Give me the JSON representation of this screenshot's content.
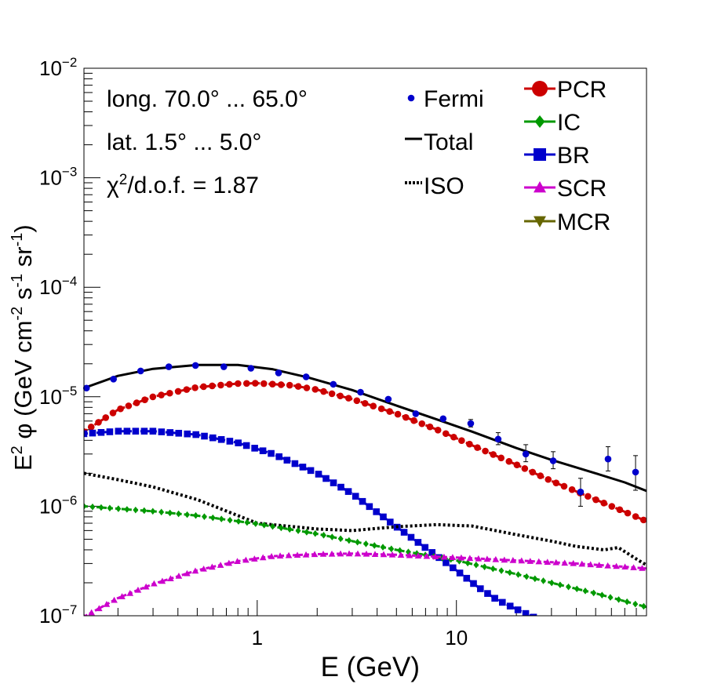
{
  "chart_data": {
    "type": "line",
    "xscale": "log",
    "yscale": "log",
    "xlim": [
      0.135,
      90
    ],
    "ylim": [
      1e-07,
      0.01
    ],
    "xlabel": "E (GeV)",
    "ylabel": {
      "prefix": "E",
      "prefix_sup": "2",
      "main": " φ (GeV cm",
      "sup1": "-2",
      "mid": " s",
      "sup2": "-1",
      "mid2": " sr",
      "sup3": "-1",
      "end": ")"
    },
    "x_tick_labels": [
      {
        "value": 1,
        "label": "1"
      },
      {
        "value": 10,
        "label": "10"
      }
    ],
    "y_tick_labels": [
      {
        "value": 1e-07,
        "base": "10",
        "exp": "−7"
      },
      {
        "value": 1e-06,
        "base": "10",
        "exp": "−6"
      },
      {
        "value": 1e-05,
        "base": "10",
        "exp": "−5"
      },
      {
        "value": 0.0001,
        "base": "10",
        "exp": "−4"
      },
      {
        "value": 0.001,
        "base": "10",
        "exp": "−3"
      },
      {
        "value": 0.01,
        "base": "10",
        "exp": "−2"
      }
    ],
    "annotations": {
      "longitude": "long. 70.0° ... 65.0°",
      "latitude": "lat. 1.5° ... 5.0°",
      "chi2_prefix": "χ",
      "chi2_sup": "2",
      "chi2_rest": "/d.o.f. = 1.87"
    },
    "legend_left": [
      {
        "label": "Fermi",
        "marker": "dot",
        "color": "#0000cc"
      },
      {
        "label": "Total",
        "marker": "solid-line",
        "color": "#000000"
      },
      {
        "label": "ISO",
        "marker": "dotted-line",
        "color": "#000000"
      }
    ],
    "legend_right": [
      {
        "label": "PCR",
        "marker": "circle",
        "color": "#cc0000"
      },
      {
        "label": "IC",
        "marker": "diamond",
        "color": "#009900"
      },
      {
        "label": "BR",
        "marker": "square",
        "color": "#0000cc"
      },
      {
        "label": "SCR",
        "marker": "triangle-up",
        "color": "#cc00cc"
      },
      {
        "label": "MCR",
        "marker": "triangle-down",
        "color": "#666600"
      }
    ],
    "series": [
      {
        "name": "Total",
        "style": "solid",
        "color": "#000000",
        "x": [
          0.135,
          0.2,
          0.3,
          0.5,
          0.8,
          1.2,
          1.8,
          3,
          5,
          8,
          12,
          20,
          30,
          50,
          70,
          90
        ],
        "y": [
          1.2e-05,
          1.55e-05,
          1.8e-05,
          1.95e-05,
          1.95e-05,
          1.78e-05,
          1.5e-05,
          1.15e-05,
          8.3e-06,
          6.2e-06,
          4.8e-06,
          3.4e-06,
          2.65e-06,
          2e-06,
          1.65e-06,
          1.38e-06
        ]
      },
      {
        "name": "PCR",
        "style": "dashed",
        "color": "#cc0000",
        "marker": "circle",
        "x": [
          0.135,
          0.2,
          0.3,
          0.5,
          0.8,
          1,
          1.5,
          2,
          3,
          5,
          8,
          12,
          20,
          30,
          50,
          70,
          90
        ],
        "y": [
          4.8e-06,
          7.6e-06,
          1e-05,
          1.22e-05,
          1.32e-05,
          1.33e-05,
          1.27e-05,
          1.16e-05,
          9.5e-06,
          7e-06,
          5e-06,
          3.6e-06,
          2.4e-06,
          1.7e-06,
          1.15e-06,
          8.9e-07,
          7.3e-07
        ]
      },
      {
        "name": "BR",
        "style": "dashed",
        "color": "#0000cc",
        "marker": "square",
        "x": [
          0.135,
          0.2,
          0.3,
          0.5,
          0.8,
          1.2,
          2,
          3,
          5,
          8,
          10,
          13,
          16,
          20,
          25
        ],
        "y": [
          4.6e-06,
          4.85e-06,
          4.85e-06,
          4.5e-06,
          3.8e-06,
          3e-06,
          2e-06,
          1.3e-06,
          6.5e-07,
          3.5e-07,
          2.6e-07,
          1.8e-07,
          1.4e-07,
          1.15e-07,
          9.5e-08
        ]
      },
      {
        "name": "ISO",
        "style": "dotted",
        "color": "#000000",
        "x": [
          0.135,
          0.2,
          0.3,
          0.5,
          1,
          2,
          3,
          5,
          8,
          12,
          20,
          30,
          40,
          55,
          65,
          80,
          90
        ],
        "y": [
          2e-06,
          1.75e-06,
          1.5e-06,
          1.15e-06,
          7e-07,
          6.2e-07,
          6e-07,
          6.5e-07,
          6.8e-07,
          6.6e-07,
          5.5e-07,
          4.8e-07,
          4.3e-07,
          4e-07,
          4.2e-07,
          3.3e-07,
          2.9e-07
        ]
      },
      {
        "name": "IC",
        "style": "dashed",
        "color": "#009900",
        "marker": "diamond",
        "x": [
          0.135,
          0.3,
          0.5,
          1,
          2,
          3,
          5,
          10,
          20,
          30,
          50,
          90
        ],
        "y": [
          1e-06,
          9e-07,
          8.2e-07,
          6.9e-07,
          5.6e-07,
          4.8e-07,
          4e-07,
          3.2e-07,
          2.4e-07,
          2e-07,
          1.6e-07,
          1.2e-07
        ]
      },
      {
        "name": "SCR",
        "style": "dashed",
        "color": "#cc00cc",
        "marker": "triangle-up",
        "x": [
          0.135,
          0.2,
          0.3,
          0.5,
          0.8,
          1.2,
          2,
          3,
          5,
          10,
          20,
          40,
          70,
          90
        ],
        "y": [
          9.8e-08,
          1.45e-07,
          1.95e-07,
          2.6e-07,
          3.15e-07,
          3.5e-07,
          3.65e-07,
          3.7e-07,
          3.6e-07,
          3.4e-07,
          3.2e-07,
          3e-07,
          2.8e-07,
          2.7e-07
        ]
      }
    ],
    "fermi_points": {
      "color": "#0000cc",
      "x": [
        0.139,
        0.19,
        0.26,
        0.36,
        0.49,
        0.68,
        0.93,
        1.28,
        1.76,
        2.41,
        3.3,
        4.55,
        6.25,
        8.58,
        11.8,
        16.2,
        22.3,
        30.6,
        42,
        57.7,
        79.3
      ],
      "y": [
        1.2e-05,
        1.45e-05,
        1.72e-05,
        1.88e-05,
        1.93e-05,
        1.88e-05,
        1.82e-05,
        1.65e-05,
        1.52e-05,
        1.3e-05,
        1.1e-05,
        9.5e-06,
        7e-06,
        6.3e-06,
        5.7e-06,
        4.1e-06,
        3e-06,
        2.6e-06,
        1.35e-06,
        2.7e-06,
        2.05e-06
      ],
      "err_lo": [
        0,
        0,
        0,
        0,
        0,
        0,
        0,
        0,
        0,
        0,
        0,
        0,
        0,
        0,
        4e-07,
        4.5e-07,
        4.5e-07,
        4e-07,
        3.5e-07,
        6e-07,
        6.5e-07
      ],
      "err_hi": [
        0,
        0,
        0,
        0,
        0,
        0,
        0,
        0,
        0,
        0,
        0,
        0,
        0,
        0,
        5e-07,
        6e-07,
        6.5e-07,
        5.5e-07,
        4.5e-07,
        8e-07,
        8.5e-07
      ]
    }
  }
}
